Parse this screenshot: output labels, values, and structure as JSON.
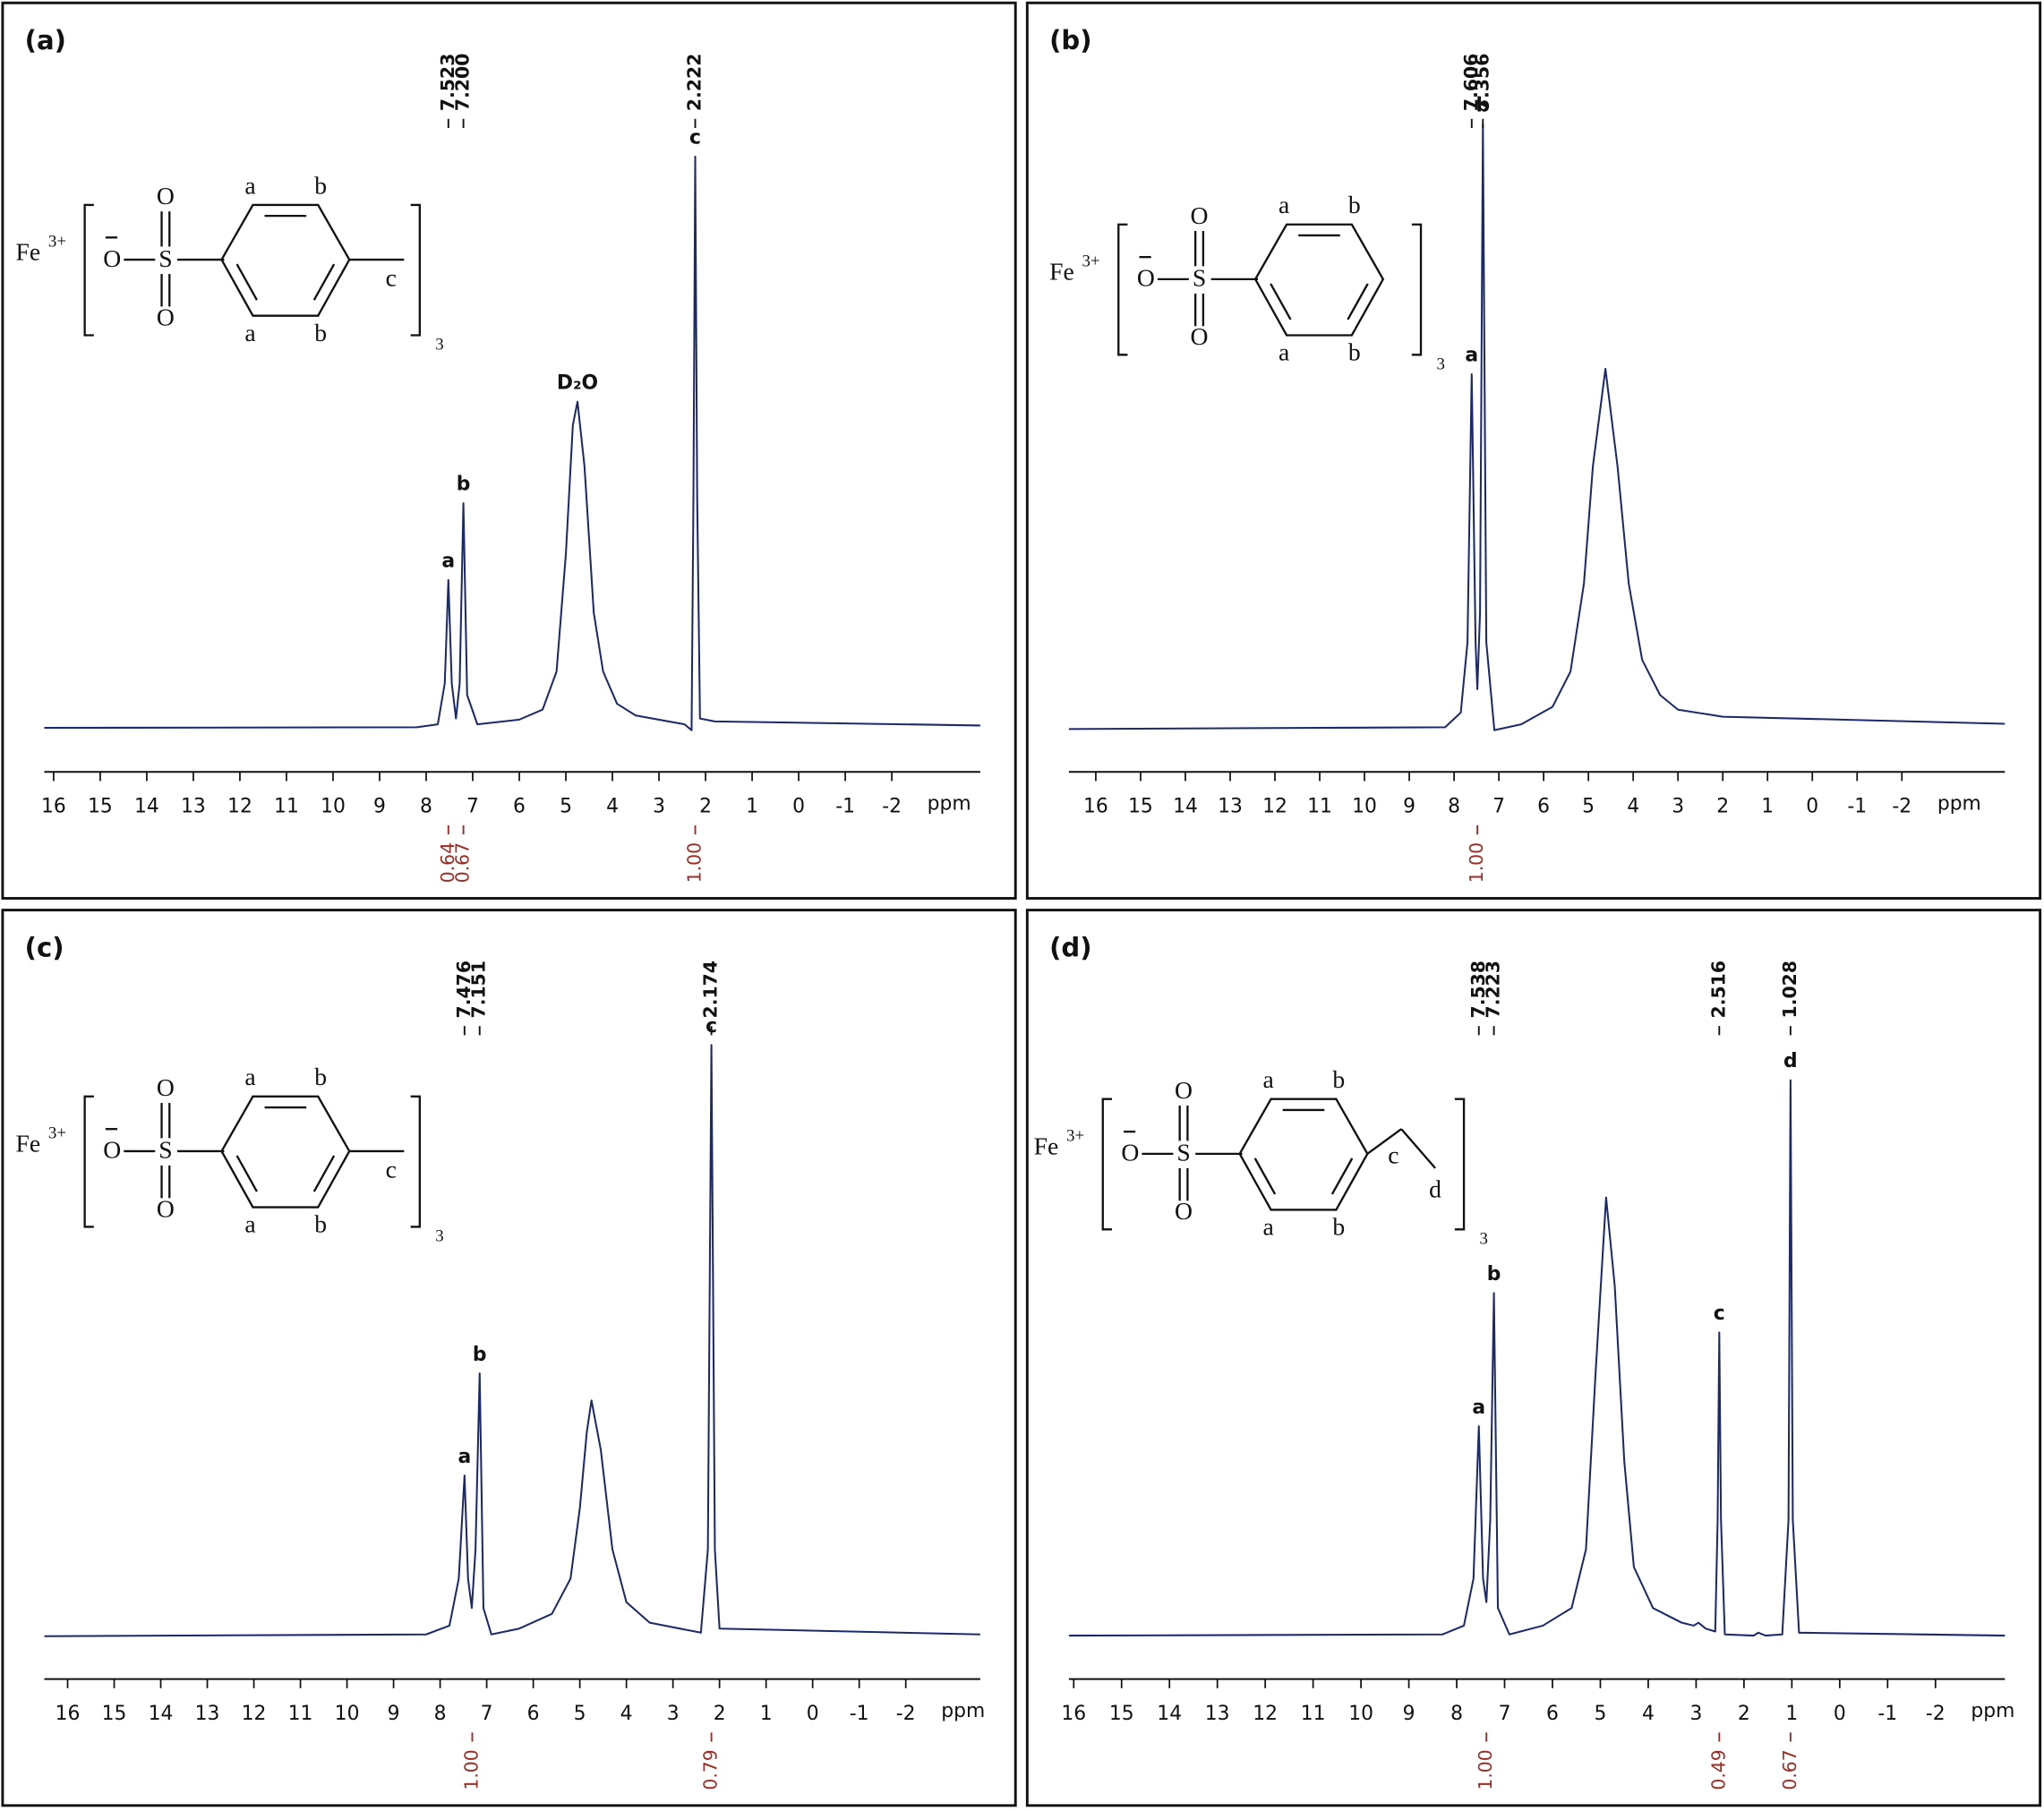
{
  "chart_data": [
    {
      "type": "line",
      "title": "(a)",
      "color": "#1b2a6b",
      "integral_color": "#9b2d25",
      "xlim": [
        16.2,
        -3.9
      ],
      "ylim": [
        0,
        110
      ],
      "xticks": [
        16,
        15,
        14,
        13,
        12,
        11,
        10,
        9,
        8,
        7,
        6,
        5,
        4,
        3,
        2,
        1,
        0,
        -1,
        -2
      ],
      "xlabel": "ppm",
      "x": [
        16.2,
        8.2,
        7.75,
        7.6,
        7.523,
        7.45,
        7.36,
        7.28,
        7.2,
        7.12,
        6.9,
        6.0,
        5.5,
        5.2,
        5.0,
        4.85,
        4.75,
        4.6,
        4.4,
        4.2,
        3.9,
        3.5,
        2.45,
        2.3,
        2.26,
        2.222,
        2.18,
        2.12,
        1.8,
        -3.9
      ],
      "values": [
        0.4,
        0.5,
        1,
        8,
        25.6,
        8,
        2,
        8,
        38.7,
        6,
        1,
        1.8,
        3.5,
        10,
        30,
        52,
        56,
        45,
        20,
        10,
        4.5,
        2.5,
        1,
        0,
        40,
        97.8,
        40,
        2,
        1.5,
        0.8
      ],
      "peak_labels": [
        {
          "text": "a",
          "x": 7.523
        },
        {
          "text": "b",
          "x": 7.2
        },
        {
          "text": "D₂O",
          "x": 4.75
        },
        {
          "text": "c",
          "x": 2.222
        }
      ],
      "shift_labels": [
        7.523,
        {
          "value": 7.2,
          "label": "7.200"
        },
        2.222
      ],
      "integrals": {
        "x": [
          7.523,
          7.2,
          2.222
        ],
        "values": [
          0.64,
          0.67,
          1
        ],
        "value_labels": [
          "0.64",
          "0.67",
          "1.00"
        ]
      },
      "structure": {
        "cation": "Fe",
        "charge": "3+",
        "anion_o": "O",
        "sulfur": "S",
        "oxygens": [
          "O",
          "O"
        ],
        "ring": [
          "a",
          "b",
          "a",
          "b"
        ],
        "chain": [
          "c"
        ],
        "count": "3"
      }
    },
    {
      "type": "line",
      "title": "(b)",
      "color": "#1b2a6b",
      "integral_color": "#9b2d25",
      "xlim": [
        16.6,
        -4.3
      ],
      "ylim": [
        0,
        110
      ],
      "xticks": [
        16,
        15,
        14,
        13,
        12,
        11,
        10,
        9,
        8,
        7,
        6,
        5,
        4,
        3,
        2,
        1,
        0,
        -1,
        -2
      ],
      "xlabel": "ppm",
      "x": [
        16.6,
        8.2,
        7.85,
        7.7,
        7.606,
        7.52,
        7.48,
        7.42,
        7.356,
        7.28,
        7.1,
        6.5,
        5.8,
        5.4,
        5.1,
        4.9,
        4.62,
        4.35,
        4.1,
        3.8,
        3.4,
        3.0,
        2.0,
        -4.3
      ],
      "values": [
        0.2,
        0.5,
        3,
        15,
        60.7,
        15,
        7,
        20,
        103.3,
        15,
        0,
        1,
        4,
        10,
        25,
        45,
        61.6,
        45,
        25,
        12,
        6,
        3.5,
        2.3,
        1.1
      ],
      "peak_labels": [
        {
          "text": "a",
          "x": 7.606
        },
        {
          "text": "b",
          "x": 7.356
        }
      ],
      "shift_labels": [
        7.606,
        7.356
      ],
      "integrals": {
        "x": [
          7.48
        ],
        "values": [
          1
        ],
        "value_labels": [
          "1.00"
        ]
      },
      "structure": {
        "cation": "Fe",
        "charge": "3+",
        "anion_o": "O",
        "sulfur": "S",
        "oxygens": [
          "O",
          "O"
        ],
        "ring": [
          "a",
          "b",
          "a",
          "b"
        ],
        "chain": [],
        "count": "3"
      }
    },
    {
      "type": "line",
      "title": "(c)",
      "color": "#1b2a6b",
      "integral_color": "#9b2d25",
      "xlim": [
        16.5,
        -3.6
      ],
      "ylim": [
        0,
        110
      ],
      "xticks": [
        16,
        15,
        14,
        13,
        12,
        11,
        10,
        9,
        8,
        7,
        6,
        5,
        4,
        3,
        2,
        1,
        0,
        -1,
        -2
      ],
      "xlabel": "ppm",
      "x": [
        16.5,
        8.3,
        7.8,
        7.6,
        7.476,
        7.4,
        7.32,
        7.24,
        7.151,
        7.07,
        6.9,
        6.3,
        5.6,
        5.2,
        5.0,
        4.85,
        4.75,
        4.55,
        4.3,
        4.0,
        3.5,
        2.4,
        2.25,
        2.174,
        2.1,
        2.0,
        -3.6
      ],
      "values": [
        0.2,
        0.5,
        2,
        10,
        27.6,
        10,
        5,
        15,
        45,
        5,
        0.5,
        1.5,
        4,
        10,
        22,
        35,
        40.4,
        32,
        15,
        6,
        2.5,
        0.8,
        15,
        101,
        15,
        1.5,
        0.5
      ],
      "peak_labels": [
        {
          "text": "a",
          "x": 7.476
        },
        {
          "text": "b",
          "x": 7.151
        },
        {
          "text": "c",
          "x": 2.174
        }
      ],
      "shift_labels": [
        7.476,
        7.151,
        2.174
      ],
      "integrals": {
        "x": [
          7.31,
          2.174
        ],
        "values": [
          1,
          0.79
        ],
        "value_labels": [
          "1.00",
          "0.79"
        ]
      },
      "structure": {
        "cation": "Fe",
        "charge": "3+",
        "anion_o": "O",
        "sulfur": "S",
        "oxygens": [
          "O",
          "O"
        ],
        "ring": [
          "a",
          "b",
          "a",
          "b"
        ],
        "chain": [
          "c"
        ],
        "count": "3"
      }
    },
    {
      "type": "line",
      "title": "(d)",
      "color": "#1b2a6b",
      "integral_color": "#9b2d25",
      "xlim": [
        16.1,
        -3.45
      ],
      "ylim": [
        0,
        110
      ],
      "xticks": [
        16,
        15,
        14,
        13,
        12,
        11,
        10,
        9,
        8,
        7,
        6,
        5,
        4,
        3,
        2,
        1,
        0,
        -1,
        -2
      ],
      "xlabel": "ppm",
      "x": [
        16.1,
        8.3,
        7.85,
        7.65,
        7.538,
        7.45,
        7.38,
        7.3,
        7.223,
        7.14,
        6.9,
        6.2,
        5.6,
        5.3,
        5.1,
        4.88,
        4.7,
        4.5,
        4.3,
        3.9,
        3.3,
        3.05,
        2.95,
        2.8,
        2.6,
        2.55,
        2.516,
        2.48,
        2.4,
        1.8,
        1.7,
        1.55,
        1.2,
        1.07,
        1.028,
        0.98,
        0.85,
        -3.45
      ],
      "values": [
        0.3,
        0.5,
        2,
        10,
        36,
        10,
        6,
        20,
        58.7,
        5,
        0.5,
        2,
        5,
        15,
        45,
        75,
        60,
        30,
        12,
        5,
        2.5,
        2,
        2.5,
        1.5,
        1,
        20,
        52,
        20,
        0.5,
        0.3,
        0.8,
        0.3,
        0.5,
        20,
        95,
        20,
        0.8,
        0.3
      ],
      "peak_labels": [
        {
          "text": "a",
          "x": 7.538
        },
        {
          "text": "b",
          "x": 7.223
        },
        {
          "text": "c",
          "x": 2.516
        },
        {
          "text": "d",
          "x": 1.028
        }
      ],
      "shift_labels": [
        7.538,
        7.223,
        2.516,
        1.028
      ],
      "integrals": {
        "x": [
          7.38,
          2.516,
          1.028
        ],
        "values": [
          1,
          0.49,
          0.67
        ],
        "value_labels": [
          "1.00",
          "0.49",
          "0.67"
        ]
      },
      "structure": {
        "cation": "Fe",
        "charge": "3+",
        "anion_o": "O",
        "sulfur": "S",
        "oxygens": [
          "O",
          "O"
        ],
        "ring": [
          "a",
          "b",
          "a",
          "b"
        ],
        "chain": [
          "c",
          "d"
        ],
        "count": "3"
      }
    }
  ]
}
